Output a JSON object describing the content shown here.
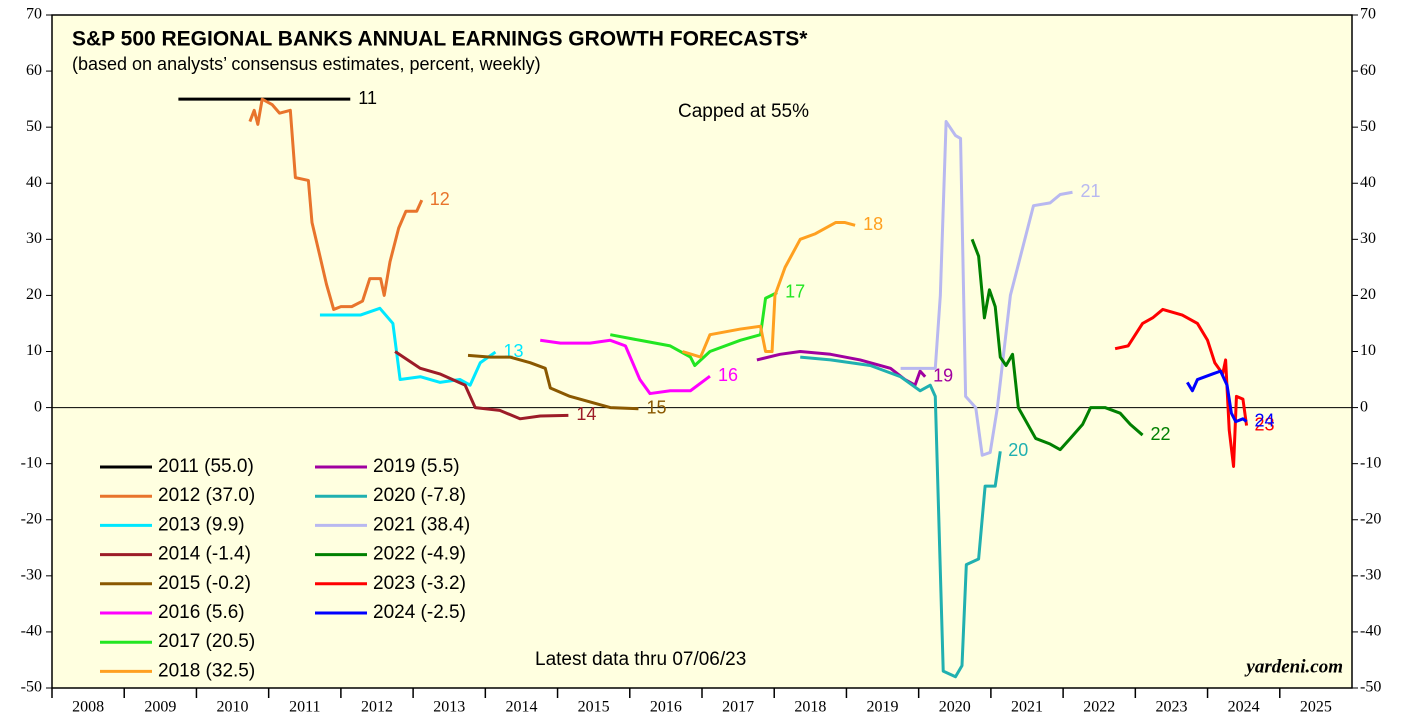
{
  "chart_data": {
    "type": "line",
    "title": "S&P 500 REGIONAL BANKS ANNUAL EARNINGS GROWTH FORECASTS*",
    "subtitle": "(based on analysts’ consensus estimates, percent, weekly)",
    "annotations": [
      "Capped at 55%",
      "Latest data thru 07/06/23",
      "yardeni.com"
    ],
    "xlim": [
      2008,
      2026
    ],
    "xticks": [
      2008,
      2009,
      2010,
      2011,
      2012,
      2013,
      2014,
      2015,
      2016,
      2017,
      2018,
      2019,
      2020,
      2021,
      2022,
      2023,
      2024,
      2025
    ],
    "ylim": [
      -50,
      70
    ],
    "yticks": [
      -50,
      -40,
      -30,
      -20,
      -10,
      0,
      10,
      20,
      30,
      40,
      50,
      60,
      70
    ],
    "series": [
      {
        "name": "2011 (55.0)",
        "label": "11",
        "color": "#000000",
        "x": [
          2009.75,
          2012.13
        ],
        "values": [
          55,
          55
        ]
      },
      {
        "name": "2012 (37.0)",
        "label": "12",
        "color": "#e8742c",
        "x": [
          2010.74,
          2010.8,
          2010.85,
          2010.91,
          2011.05,
          2011.15,
          2011.3,
          2011.37,
          2011.55,
          2011.6,
          2011.71,
          2011.8,
          2011.9,
          2012.0,
          2012.15,
          2012.3,
          2012.4,
          2012.55,
          2012.6,
          2012.68,
          2012.8,
          2012.9,
          2013.05,
          2013.12
        ],
        "values": [
          51,
          53,
          50.5,
          55,
          54,
          52.5,
          53,
          41,
          40.5,
          33,
          27,
          22,
          17.5,
          18,
          18,
          19,
          23,
          23,
          20,
          26,
          32,
          35,
          35,
          37
        ]
      },
      {
        "name": "2013 (9.9)",
        "label": "13",
        "color": "#00e8ff",
        "x": [
          2011.71,
          2012.27,
          2012.54,
          2012.72,
          2012.82,
          2013.1,
          2013.37,
          2013.65,
          2013.79,
          2013.93,
          2014.14
        ],
        "values": [
          16.5,
          16.5,
          17.7,
          15,
          5,
          5.5,
          4.5,
          5,
          4,
          8,
          9.9
        ]
      },
      {
        "name": "2014 (-1.4)",
        "label": "14",
        "color": "#9c1c28",
        "x": [
          2012.75,
          2013.1,
          2013.37,
          2013.72,
          2013.86,
          2014.2,
          2014.48,
          2014.76,
          2015.15
        ],
        "values": [
          10,
          7,
          6,
          4,
          0,
          -0.5,
          -2,
          -1.5,
          -1.4
        ]
      },
      {
        "name": "2015 (-0.2)",
        "label": "15",
        "color": "#8a5800",
        "x": [
          2013.76,
          2014.07,
          2014.34,
          2014.62,
          2014.83,
          2014.9,
          2015.17,
          2015.45,
          2015.73,
          2016.12
        ],
        "values": [
          9.3,
          9,
          9,
          8,
          7,
          3.5,
          2,
          1,
          0,
          -0.2
        ]
      },
      {
        "name": "2016 (5.6)",
        "label": "16",
        "color": "#ff00ff",
        "x": [
          2014.76,
          2015.04,
          2015.45,
          2015.73,
          2015.94,
          2016.14,
          2016.28,
          2016.56,
          2016.84,
          2017.11
        ],
        "values": [
          12,
          11.5,
          11.5,
          12,
          11,
          5,
          2.5,
          3,
          3,
          5.6
        ]
      },
      {
        "name": "2017 (20.5)",
        "label": "17",
        "color": "#22e622",
        "x": [
          2015.73,
          2016.14,
          2016.56,
          2016.84,
          2016.9,
          2017.11,
          2017.53,
          2017.81,
          2017.88,
          2018.04
        ],
        "values": [
          13,
          12,
          11,
          9,
          7.5,
          10,
          12,
          13,
          19.5,
          20.5
        ]
      },
      {
        "name": "2018 (32.5)",
        "label": "18",
        "color": "#ffa020",
        "x": [
          2016.73,
          2016.98,
          2017.11,
          2017.53,
          2017.81,
          2017.88,
          2017.97,
          2018.01,
          2018.15,
          2018.36,
          2018.57,
          2018.85,
          2018.98,
          2019.12
        ],
        "values": [
          10,
          9,
          13,
          14,
          14.5,
          10,
          10,
          20,
          25,
          30,
          31,
          33,
          33,
          32.5
        ]
      },
      {
        "name": "2019 (5.5)",
        "label": "19",
        "color": "#a000a0",
        "x": [
          2017.76,
          2018.08,
          2018.36,
          2018.78,
          2019.19,
          2019.61,
          2019.81,
          2019.95,
          2020.02,
          2020.09
        ],
        "values": [
          8.5,
          9.5,
          10,
          9.5,
          8.5,
          7,
          5,
          4,
          6.5,
          5.5
        ]
      },
      {
        "name": "2020 (-7.8)",
        "label": "20",
        "color": "#20b0b0",
        "x": [
          2018.36,
          2018.78,
          2019.33,
          2019.75,
          2020.02,
          2020.16,
          2020.23,
          2020.34,
          2020.51,
          2020.6,
          2020.66,
          2020.83,
          2020.92,
          2021.06,
          2021.13
        ],
        "values": [
          9,
          8.5,
          7.5,
          5.5,
          3,
          4,
          2,
          -47,
          -48,
          -46,
          -28,
          -27,
          -14,
          -14,
          -7.8
        ]
      },
      {
        "name": "2021 (38.4)",
        "label": "21",
        "color": "#b8b8f0",
        "x": [
          2019.75,
          2020.09,
          2020.23,
          2020.3,
          2020.38,
          2020.51,
          2020.58,
          2020.65,
          2020.79,
          2020.88,
          2020.99,
          2021.09,
          2021.27,
          2021.41,
          2021.59,
          2021.82,
          2021.96,
          2022.13
        ],
        "values": [
          7,
          7,
          7,
          20,
          51,
          48.5,
          48,
          2,
          0,
          -8.5,
          -8,
          0,
          20,
          27,
          36,
          36.5,
          38,
          38.4
        ]
      },
      {
        "name": "2022 (-4.9)",
        "label": "22",
        "color": "#008000",
        "x": [
          2020.74,
          2020.83,
          2020.91,
          2020.98,
          2021.06,
          2021.13,
          2021.21,
          2021.3,
          2021.38,
          2021.62,
          2021.82,
          2021.96,
          2022.1,
          2022.27,
          2022.38,
          2022.58,
          2022.79,
          2022.93,
          2023.1
        ],
        "values": [
          30,
          27,
          16,
          21,
          18,
          9,
          7.5,
          9.5,
          0,
          -5.5,
          -6.5,
          -7.5,
          -5.5,
          -3,
          0,
          0,
          -1,
          -3,
          -4.9
        ]
      },
      {
        "name": "2023 (-3.2)",
        "label": "23",
        "color": "#ff0000",
        "x": [
          2022.72,
          2022.9,
          2023.1,
          2023.24,
          2023.38,
          2023.65,
          2023.86,
          2024.0,
          2024.1,
          2024.21,
          2024.25,
          2024.3,
          2024.36,
          2024.4,
          2024.49,
          2024.54
        ],
        "values": [
          10.5,
          11,
          15,
          16,
          17.5,
          16.5,
          15,
          12,
          8,
          6,
          8.5,
          -4,
          -10.5,
          2,
          1.5,
          -3.2
        ]
      },
      {
        "name": "2024 (-2.5)",
        "label": "24",
        "color": "#0000ff",
        "x": [
          2023.72,
          2023.79,
          2023.86,
          2024.07,
          2024.18,
          2024.27,
          2024.33,
          2024.39,
          2024.49,
          2024.54
        ],
        "values": [
          4.5,
          3,
          5,
          6,
          6.5,
          4,
          -1,
          -2.5,
          -2,
          -2.5
        ]
      }
    ]
  }
}
